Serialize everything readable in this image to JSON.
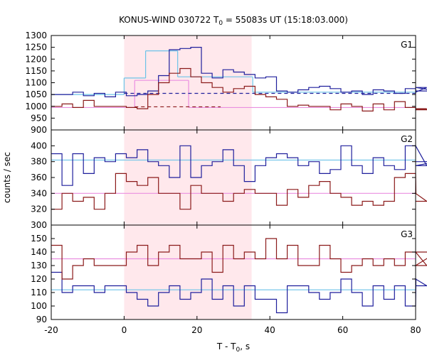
{
  "chart_data": {
    "type": "line",
    "title": {
      "main": "KONUS-WIND 030722 T",
      "sub": "0",
      "rest": " = 55083s UT (15:18:03.000)"
    },
    "xlabel": {
      "main": "T - T",
      "sub": "0",
      "rest": ", s"
    },
    "ylabel": "counts / sec",
    "xlim": [
      -20,
      80
    ],
    "xticks": [
      -20,
      0,
      20,
      40,
      60,
      80
    ],
    "highlight": {
      "x0": 0,
      "x1": 35,
      "color": "#ffe8ec"
    },
    "bin_width": 2.944,
    "x_start": -20,
    "colors": {
      "blue": "#1f1f9c",
      "red": "#8b1a1a",
      "cyan": "#6cc3e8",
      "pink": "#ea8fe0"
    },
    "panels": [
      {
        "label": "G1",
        "ylim": [
          900,
          1300
        ],
        "yticks": [
          900,
          950,
          1000,
          1050,
          1100,
          1150,
          1200,
          1250,
          1300
        ],
        "series": [
          {
            "color_key": "blue",
            "values": [
              1050,
              1050,
              1060,
              1045,
              1055,
              1040,
              1060,
              1045,
              1050,
              1065,
              1130,
              1240,
              1245,
              1250,
              1140,
              1120,
              1155,
              1145,
              1135,
              1120,
              1125,
              1065,
              1060,
              1070,
              1080,
              1085,
              1075,
              1060,
              1065,
              1050,
              1070,
              1065,
              1055,
              1075,
              1060,
              1080,
              1065
            ]
          },
          {
            "color_key": "red",
            "values": [
              1000,
              1010,
              995,
              1025,
              1000,
              1000,
              1000,
              995,
              990,
              1050,
              1100,
              1140,
              1160,
              1125,
              1100,
              1080,
              1060,
              1075,
              1085,
              1050,
              1040,
              1030,
              1000,
              1005,
              1000,
              1000,
              985,
              1010,
              1000,
              980,
              1010,
              985,
              1020,
              995,
              985,
              990,
              985
            ]
          }
        ],
        "fits": [
          {
            "color_key": "cyan",
            "segments": [
              {
                "x0": -20,
                "x1": 0,
                "y": 1050
              },
              {
                "x0": 0,
                "x1": 5.9,
                "y": 1120
              },
              {
                "x0": 5.9,
                "x1": 14.7,
                "y": 1235
              },
              {
                "x0": 14.7,
                "x1": 35.3,
                "y": 1125
              },
              {
                "x0": 35.3,
                "x1": 80,
                "y": 1060
              }
            ]
          },
          {
            "color_key": "pink",
            "segments": [
              {
                "x0": -20,
                "x1": 2.9,
                "y": 995
              },
              {
                "x0": 2.9,
                "x1": 17.7,
                "y": 1110
              },
              {
                "x0": 17.7,
                "x1": 80,
                "y": 995
              }
            ]
          }
        ],
        "dashed": [
          {
            "color_key": "blue",
            "x0": 0,
            "x1": 80,
            "y": 1055
          },
          {
            "color_key": "red",
            "x0": 2.9,
            "x1": 26.5,
            "y": 998
          }
        ]
      },
      {
        "label": "G2",
        "ylim": [
          300,
          420
        ],
        "yticks": [
          300,
          320,
          340,
          360,
          380,
          400
        ],
        "series": [
          {
            "color_key": "blue",
            "values": [
              390,
              350,
              390,
              365,
              385,
              380,
              390,
              385,
              395,
              380,
              375,
              360,
              400,
              360,
              375,
              380,
              395,
              375,
              355,
              375,
              385,
              390,
              385,
              375,
              380,
              365,
              370,
              400,
              375,
              365,
              385,
              375,
              370,
              400,
              400,
              375,
              380
            ]
          },
          {
            "color_key": "red",
            "values": [
              320,
              340,
              330,
              335,
              320,
              340,
              365,
              355,
              350,
              360,
              340,
              340,
              320,
              350,
              340,
              340,
              330,
              340,
              345,
              340,
              340,
              325,
              345,
              335,
              350,
              355,
              340,
              335,
              325,
              330,
              325,
              330,
              360,
              365,
              340,
              330,
              330
            ]
          }
        ],
        "fits": [
          {
            "color_key": "cyan",
            "segments": [
              {
                "x0": -20,
                "x1": 80,
                "y": 382
              }
            ]
          },
          {
            "color_key": "pink",
            "segments": [
              {
                "x0": -20,
                "x1": 80,
                "y": 340
              }
            ]
          }
        ],
        "dashed": []
      },
      {
        "label": "G3",
        "ylim": [
          90,
          160
        ],
        "yticks": [
          90,
          100,
          110,
          120,
          130,
          140,
          150
        ],
        "series": [
          {
            "color_key": "blue",
            "values": [
              125,
              110,
              115,
              115,
              110,
              115,
              115,
              110,
              105,
              100,
              110,
              115,
              105,
              110,
              120,
              105,
              115,
              100,
              115,
              105,
              105,
              95,
              115,
              115,
              110,
              105,
              110,
              120,
              110,
              100,
              115,
              105,
              115,
              100,
              120,
              115,
              115
            ]
          },
          {
            "color_key": "red",
            "values": [
              145,
              120,
              130,
              135,
              130,
              130,
              130,
              140,
              145,
              130,
              140,
              145,
              135,
              135,
              140,
              125,
              145,
              135,
              140,
              135,
              150,
              135,
              145,
              130,
              130,
              145,
              135,
              125,
              130,
              135,
              130,
              135,
              130,
              140,
              140,
              130,
              140
            ]
          }
        ],
        "fits": [
          {
            "color_key": "cyan",
            "segments": [
              {
                "x0": -20,
                "x1": 80,
                "y": 112
              }
            ]
          },
          {
            "color_key": "pink",
            "segments": [
              {
                "x0": -20,
                "x1": 80,
                "y": 135
              }
            ]
          }
        ],
        "dashed": []
      }
    ]
  }
}
